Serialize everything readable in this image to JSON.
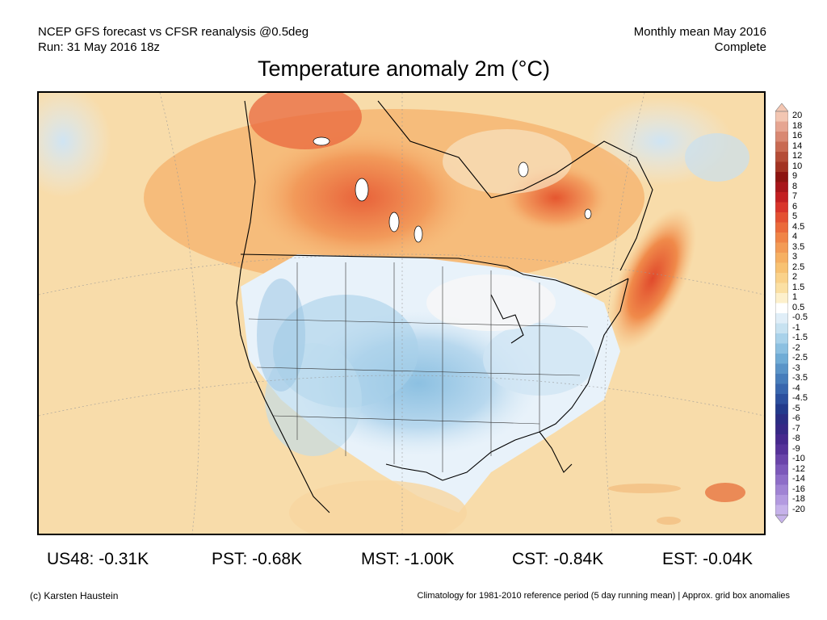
{
  "header": {
    "line1_left": "NCEP GFS forecast vs CFSR reanalysis @0.5deg",
    "line2_left": "Run: 31 May 2016 18z",
    "line1_right": "Monthly mean May 2016",
    "line2_right": "Complete"
  },
  "title": "Temperature anomaly 2m (°C)",
  "colorbar": {
    "labels": [
      "20",
      "18",
      "16",
      "14",
      "12",
      "10",
      "9",
      "8",
      "7",
      "6",
      "5",
      "4.5",
      "4",
      "3.5",
      "3",
      "2.5",
      "2",
      "1.5",
      "1",
      "0.5",
      "-0.5",
      "-1",
      "-1.5",
      "-2",
      "-2.5",
      "-3",
      "-3.5",
      "-4",
      "-4.5",
      "-5",
      "-6",
      "-7",
      "-8",
      "-9",
      "-10",
      "-12",
      "-14",
      "-16",
      "-18",
      "-20"
    ],
    "colors": [
      "#f3c6b2",
      "#e6a591",
      "#d98872",
      "#c96a52",
      "#b54c36",
      "#a33322",
      "#8d1410",
      "#a8161a",
      "#c31f21",
      "#d9342a",
      "#e45031",
      "#eb6a3a",
      "#f08446",
      "#f39b55",
      "#f6b062",
      "#f8c272",
      "#fad28a",
      "#fbe0a3",
      "#fdf0cc",
      "#ffffff",
      "#e0eef8",
      "#c7e2f1",
      "#a9d2ea",
      "#8cc0e1",
      "#70acd6",
      "#5a94c8",
      "#477dbb",
      "#3866ae",
      "#2b4f9e",
      "#223a8c",
      "#2a2d84",
      "#362886",
      "#46288e",
      "#56329a",
      "#6a44aa",
      "#7c58ba",
      "#8e6dc8",
      "#a083d4",
      "#b39ae0",
      "#c6b2ea"
    ]
  },
  "stats": [
    {
      "label": "US48: -0.31K"
    },
    {
      "label": "PST: -0.68K"
    },
    {
      "label": "MST: -1.00K"
    },
    {
      "label": "CST: -0.84K"
    },
    {
      "label": "EST: -0.04K"
    }
  ],
  "footer": {
    "credit": "(c) Karsten Haustein",
    "note": "Climatology for 1981-2010 reference period (5 day running mean) | Approx. grid box anomalies"
  }
}
